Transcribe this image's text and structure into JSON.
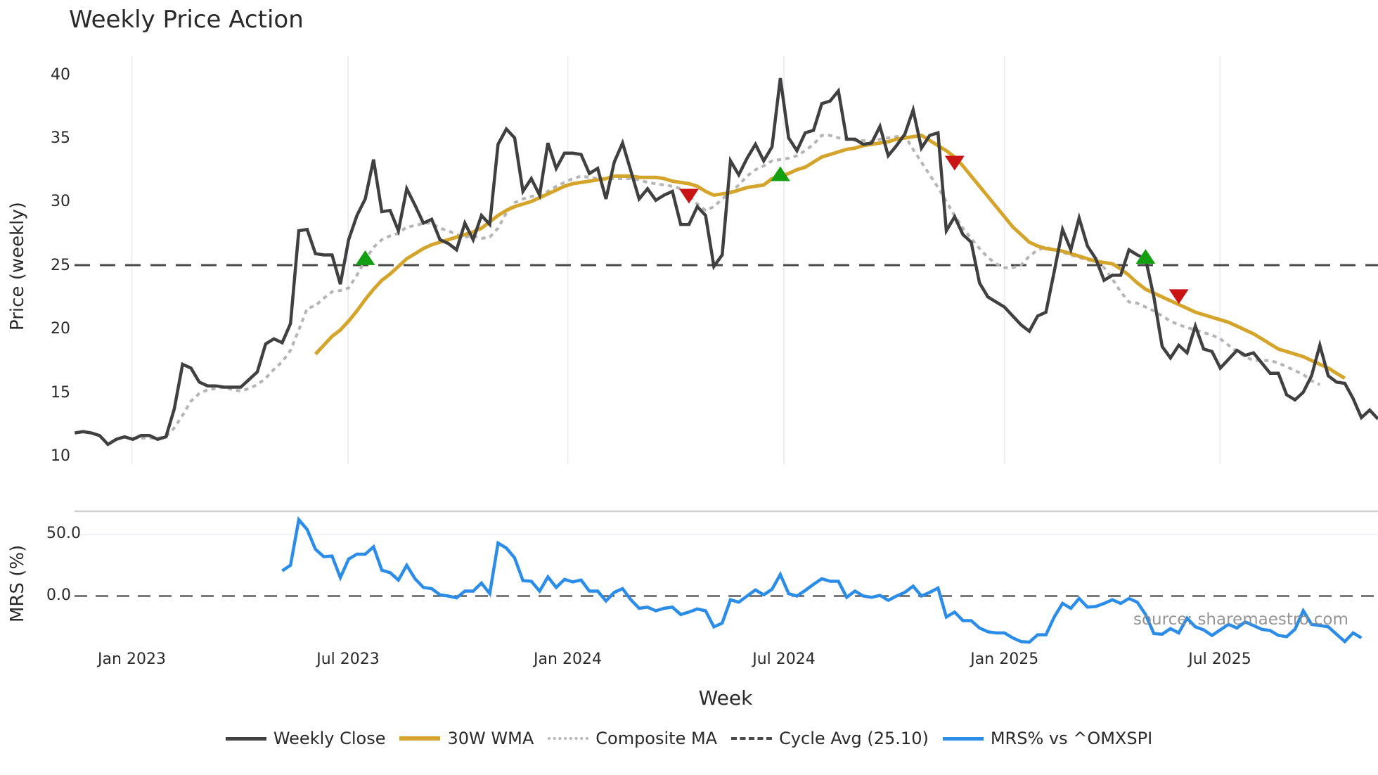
{
  "title": "Weekly Price Action",
  "price_axis": {
    "label": "Price (weekly)",
    "ticks": [
      "40",
      "35",
      "30",
      "25",
      "20",
      "15",
      "10"
    ]
  },
  "mrs_axis": {
    "label": "MRS (%)",
    "ticks": [
      "50.0",
      "0.0"
    ]
  },
  "x_axis": {
    "label": "Week",
    "ticks": [
      "Jan 2023",
      "Jul 2023",
      "Jan 2024",
      "Jul 2024",
      "Jan 2025",
      "Jul 2025"
    ]
  },
  "source_text": "source: sharemaestro.com",
  "legend": [
    {
      "label": "Weekly Close",
      "color": "#404040",
      "style": "solid"
    },
    {
      "label": "30W WMA",
      "color": "#d4a52a",
      "style": "solid"
    },
    {
      "label": "Composite MA",
      "color": "#b5b5b5",
      "style": "dotted"
    },
    {
      "label": "Cycle Avg (25.10)",
      "color": "#4a4a4a",
      "style": "dashed"
    },
    {
      "label": "MRS% vs ^OMXSPI",
      "color": "#2b8de8",
      "style": "solid"
    }
  ],
  "chart_data": {
    "type": "line",
    "title": "Weekly Price Action",
    "xlabel": "Week",
    "ylabel": "Price (weekly)",
    "ylim": [
      10,
      41
    ],
    "x_range": [
      "2022-11-14",
      "2025-11-17"
    ],
    "x_tick_labels": [
      "Jan 2023",
      "Jul 2023",
      "Jan 2024",
      "Jul 2024",
      "Jan 2025",
      "Jul 2025"
    ],
    "grid": "vertical",
    "legend_position": "bottom",
    "cycle_avg": 25.1,
    "series": [
      {
        "name": "Weekly Close",
        "start_index": 0,
        "values": [
          11.9,
          12.0,
          11.9,
          11.7,
          11.0,
          11.4,
          11.6,
          11.4,
          11.7,
          11.7,
          11.4,
          11.6,
          13.8,
          17.3,
          17.0,
          15.9,
          15.6,
          15.6,
          15.5,
          15.5,
          15.5,
          16.1,
          16.7,
          18.9,
          19.3,
          19.0,
          20.5,
          27.8,
          27.9,
          26.0,
          25.9,
          25.9,
          23.6,
          27.1,
          29.0,
          30.3,
          33.4,
          29.3,
          29.4,
          27.8,
          31.1,
          29.8,
          28.4,
          28.7,
          27.1,
          26.8,
          26.3,
          28.4,
          27.1,
          29.0,
          28.3,
          34.6,
          35.8,
          35.1,
          30.9,
          31.9,
          30.6,
          34.7,
          32.7,
          33.9,
          33.9,
          33.8,
          32.3,
          32.7,
          30.3,
          33.2,
          34.7,
          32.5,
          30.3,
          31.1,
          30.2,
          30.6,
          30.9,
          28.3,
          28.3,
          29.7,
          29.0,
          25.0,
          25.9,
          33.3,
          32.2,
          33.5,
          34.6,
          33.3,
          34.4,
          39.8,
          35.1,
          34.1,
          35.5,
          35.7,
          37.8,
          38.0,
          38.8,
          35.0,
          35.0,
          34.6,
          34.7,
          36.0,
          33.7,
          34.5,
          35.4,
          37.3,
          34.3,
          35.3,
          35.5,
          27.8,
          28.9,
          27.5,
          26.9,
          23.7,
          22.6,
          22.2,
          21.8,
          21.1,
          20.4,
          19.9,
          21.1,
          21.4,
          24.6,
          27.9,
          26.3,
          28.8,
          26.6,
          25.6,
          23.9,
          24.3,
          24.3,
          26.3,
          25.9,
          25.6,
          22.6,
          18.7,
          17.8,
          18.8,
          18.2,
          20.3,
          18.5,
          18.3,
          17.0,
          17.7,
          18.4,
          18.0,
          18.2,
          17.4,
          16.6,
          16.6,
          14.9,
          14.5,
          15.1,
          16.4,
          18.8,
          16.4,
          15.9,
          15.8,
          14.6,
          13.1,
          13.7,
          13.0
        ]
      },
      {
        "name": "30W WMA",
        "start_index": 29,
        "values": [
          18.1,
          18.8,
          19.5,
          20.0,
          20.7,
          21.5,
          22.4,
          23.2,
          23.9,
          24.4,
          25.0,
          25.6,
          26.0,
          26.4,
          26.7,
          26.9,
          27.1,
          27.3,
          27.5,
          27.7,
          28.0,
          28.5,
          29.0,
          29.4,
          29.7,
          29.9,
          30.1,
          30.4,
          30.7,
          31.0,
          31.3,
          31.5,
          31.6,
          31.7,
          31.8,
          31.9,
          32.1,
          32.1,
          32.1,
          32.0,
          32.0,
          32.0,
          31.9,
          31.7,
          31.6,
          31.5,
          31.3,
          30.9,
          30.6,
          30.7,
          30.8,
          31.0,
          31.2,
          31.3,
          31.4,
          31.9,
          32.1,
          32.3,
          32.6,
          32.8,
          33.2,
          33.6,
          33.8,
          34.0,
          34.2,
          34.3,
          34.5,
          34.6,
          34.7,
          34.8,
          35.0,
          35.1,
          35.2,
          35.3,
          34.9,
          34.5,
          34.1,
          33.6,
          32.9,
          32.1,
          31.3,
          30.5,
          29.7,
          28.9,
          28.1,
          27.5,
          26.9,
          26.6,
          26.4,
          26.3,
          26.2,
          26.0,
          25.8,
          25.6,
          25.4,
          25.3,
          25.2,
          24.8,
          24.3,
          23.7,
          23.2,
          22.9,
          22.6,
          22.3,
          22.0,
          21.7,
          21.4,
          21.2,
          21.0,
          20.8,
          20.6,
          20.3,
          20.0,
          19.7,
          19.3,
          18.9,
          18.5,
          18.3,
          18.1,
          17.9,
          17.6,
          17.3,
          17.0,
          16.6,
          16.2
        ]
      },
      {
        "name": "Composite MA",
        "start_index": 7,
        "values": [
          11.5,
          11.5,
          11.5,
          11.5,
          11.6,
          12.3,
          13.3,
          14.4,
          15.0,
          15.3,
          15.4,
          15.5,
          15.3,
          15.2,
          15.4,
          15.7,
          16.2,
          16.9,
          17.5,
          18.4,
          20.0,
          21.7,
          21.9,
          22.5,
          23.0,
          23.1,
          23.3,
          24.3,
          25.5,
          26.5,
          27.1,
          27.4,
          27.6,
          28.1,
          28.2,
          28.4,
          28.4,
          28.0,
          27.8,
          27.5,
          27.3,
          27.4,
          27.2,
          27.3,
          28.0,
          29.2,
          30.0,
          30.3,
          30.5,
          30.6,
          30.9,
          31.3,
          31.6,
          31.9,
          32.1,
          32.0,
          31.9,
          31.9,
          31.9,
          31.9,
          31.9,
          31.8,
          31.6,
          31.5,
          31.4,
          31.3,
          31.1,
          30.6,
          29.9,
          29.4,
          29.7,
          30.3,
          30.8,
          31.4,
          32.1,
          32.6,
          32.9,
          33.3,
          33.4,
          33.5,
          33.7,
          34.1,
          34.6,
          35.3,
          35.3,
          35.1,
          35.0,
          34.9,
          34.9,
          34.8,
          35.0,
          35.1,
          35.2,
          35.3,
          34.2,
          33.2,
          32.2,
          31.2,
          30.1,
          29.0,
          28.0,
          27.2,
          26.4,
          25.7,
          25.2,
          24.9,
          24.9,
          25.1,
          25.8,
          26.3,
          26.5,
          26.3,
          26.1,
          25.9,
          25.7,
          25.5,
          25.4,
          24.9,
          24.0,
          23.0,
          22.2,
          22.1,
          21.8,
          21.5,
          21.1,
          20.7,
          20.4,
          20.2,
          20.0,
          19.8,
          19.6,
          19.3,
          18.8,
          18.3,
          17.9,
          17.6,
          17.6,
          17.6,
          17.4,
          17.1,
          16.8,
          16.5,
          16.0,
          15.7
        ]
      },
      {
        "name": "MRS% vs ^OMXSPI",
        "axis": "mrs",
        "ylim": [
          -40,
          65
        ],
        "start_index": 25,
        "values": [
          20.5,
          25.0,
          62.0,
          54.0,
          38.0,
          32.0,
          32.5,
          15.0,
          30.0,
          34.0,
          34.0,
          40.0,
          21.0,
          19.0,
          13.0,
          25.0,
          14.0,
          7.0,
          6.0,
          1.0,
          0.0,
          -1.5,
          4.0,
          4.0,
          10.5,
          2.0,
          43.0,
          39.0,
          31.0,
          12.5,
          12.0,
          4.0,
          15.5,
          7.0,
          13.5,
          11.5,
          13.0,
          4.0,
          4.0,
          -4.0,
          3.0,
          6.0,
          -3.0,
          -10.0,
          -9.0,
          -12.0,
          -10.0,
          -9.0,
          -15.0,
          -13.0,
          -10.5,
          -12.0,
          -25.0,
          -22.0,
          -3.0,
          -5.0,
          0.0,
          5.0,
          1.0,
          5.5,
          17.5,
          2.0,
          0.0,
          4.5,
          9.5,
          14.0,
          12.0,
          12.0,
          -1.0,
          4.0,
          0.0,
          -1.0,
          0.5,
          -3.5,
          0.0,
          3.0,
          8.0,
          0.0,
          3.0,
          6.5,
          -17.0,
          -13.0,
          -20.0,
          -20.0,
          -26.0,
          -29.0,
          -30.0,
          -30.0,
          -34.0,
          -37.0,
          -37.5,
          -31.5,
          -31.5,
          -17.0,
          -6.0,
          -10.0,
          -2.0,
          -9.0,
          -8.5,
          -6.0,
          -3.0,
          -6.0,
          -2.0,
          -5.0,
          -15.0,
          -30.5,
          -31.0,
          -26.5,
          -30.0,
          -18.0,
          -25.0,
          -27.5,
          -32.0,
          -27.5,
          -23.0,
          -26.0,
          -21.0,
          -24.0,
          -27.0,
          -28.0,
          -32.0,
          -33.0,
          -27.0,
          -12.0,
          -23.0,
          -24.0,
          -25.0,
          -31.0,
          -37.0,
          -30.0,
          -34.0
        ]
      }
    ],
    "markers": [
      {
        "type": "buy",
        "shape": "triangle-up",
        "color": "#12a012",
        "week_index": 35,
        "price": 25.6
      },
      {
        "type": "sell",
        "shape": "triangle-down",
        "color": "#c81414",
        "week_index": 74,
        "price": 30.6
      },
      {
        "type": "buy",
        "shape": "triangle-up",
        "color": "#12a012",
        "week_index": 85,
        "price": 32.2
      },
      {
        "type": "sell",
        "shape": "triangle-down",
        "color": "#c81414",
        "week_index": 106,
        "price": 33.2
      },
      {
        "type": "buy",
        "shape": "triangle-up",
        "color": "#12a012",
        "week_index": 129,
        "price": 25.7
      },
      {
        "type": "sell",
        "shape": "triangle-down",
        "color": "#c81414",
        "week_index": 133,
        "price": 22.7
      }
    ],
    "mrs_panel": {
      "ylabel": "MRS (%)",
      "ticks": [
        50.0,
        0.0
      ],
      "zero_line": "dashed"
    }
  }
}
